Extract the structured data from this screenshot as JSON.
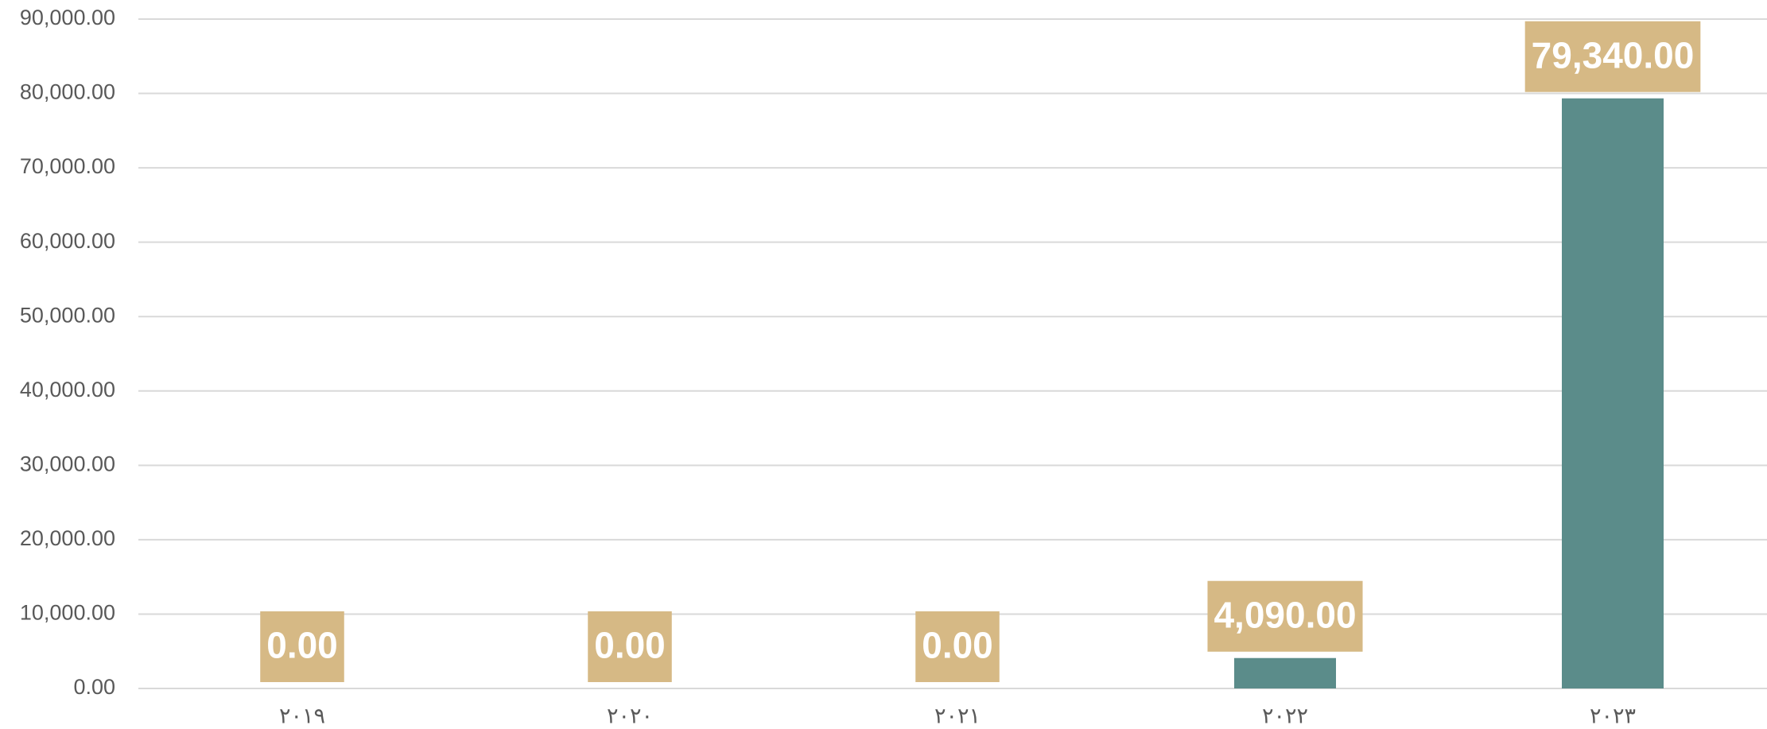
{
  "chart_data": {
    "type": "bar",
    "categories": [
      "٢٠١٩",
      "٢٠٢٠",
      "٢٠٢١",
      "٢٠٢٢",
      "٢٠٢٣"
    ],
    "values": [
      0,
      0,
      0,
      4090,
      79340
    ],
    "value_labels": [
      "0.00",
      "0.00",
      "0.00",
      "4,090.00",
      "79,340.00"
    ],
    "color": "#5b8c8a",
    "label_color": "#d6b985",
    "ylim": [
      0,
      90000
    ],
    "yticks": [
      {
        "value": 0,
        "label": "0.00"
      },
      {
        "value": 10000,
        "label": "10,000.00"
      },
      {
        "value": 20000,
        "label": "20,000.00"
      },
      {
        "value": 30000,
        "label": "30,000.00"
      },
      {
        "value": 40000,
        "label": "40,000.00"
      },
      {
        "value": 50000,
        "label": "50,000.00"
      },
      {
        "value": 60000,
        "label": "60,000.00"
      },
      {
        "value": 70000,
        "label": "70,000.00"
      },
      {
        "value": 80000,
        "label": "80,000.00"
      },
      {
        "value": 90000,
        "label": "90,000.00"
      }
    ],
    "grid": true
  }
}
